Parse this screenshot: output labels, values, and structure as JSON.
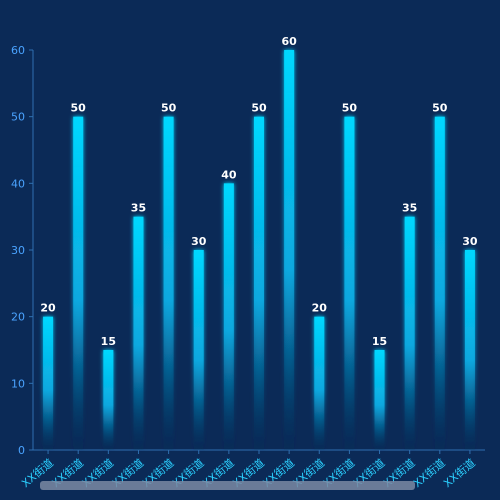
{
  "chart_data": {
    "type": "bar",
    "categories": [
      "XX街道",
      "XX街道",
      "XX街道",
      "XX街道",
      "XX街道",
      "XX街道",
      "XX街道",
      "XX街道",
      "XX街道",
      "XX街道",
      "XX街道",
      "XX街道",
      "XX街道",
      "XX街道",
      "XX街道"
    ],
    "values": [
      20,
      50,
      15,
      35,
      50,
      30,
      40,
      50,
      60,
      20,
      50,
      15,
      35,
      50,
      30
    ],
    "ylim": [
      0,
      60
    ],
    "yticks": [
      0,
      10,
      20,
      30,
      40,
      50,
      60
    ],
    "grid": false,
    "data_labels": true,
    "colors": {
      "background": "#0b2a57",
      "bar_top": "#00d8ff",
      "bar_bottom": "#0b2a57",
      "axis": "#2f6fb0",
      "tick_y": "#4aa3ff",
      "tick_x": "#2bd0ff",
      "value_label": "#ffffff",
      "scrollbar": "#7b8aa3"
    }
  }
}
